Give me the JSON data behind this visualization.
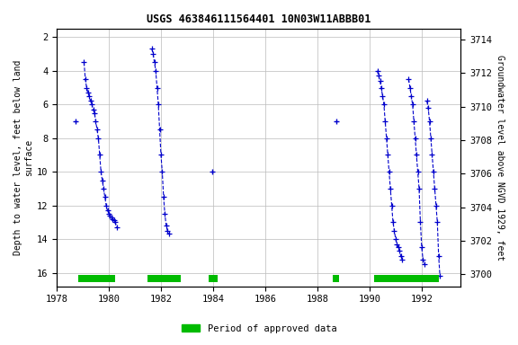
{
  "title": "USGS 463846111564401 10N03W11ABBB01",
  "ylabel_left": "Depth to water level, feet below land\nsurface",
  "ylabel_right": "Groundwater level above NGVD 1929, feet",
  "xlim": [
    1978,
    1993.5
  ],
  "ylim_left": [
    16.8,
    1.5
  ],
  "ylim_right": [
    3699.3,
    3714.65
  ],
  "xticks": [
    1978,
    1980,
    1982,
    1984,
    1986,
    1988,
    1990,
    1992
  ],
  "yticks_left": [
    2,
    4,
    6,
    8,
    10,
    12,
    14,
    16
  ],
  "yticks_right": [
    3700,
    3702,
    3704,
    3706,
    3708,
    3710,
    3712,
    3714
  ],
  "clusters": [
    {
      "x": [
        1978.72
      ],
      "y": [
        7.0
      ]
    },
    {
      "x": [
        1979.05,
        1979.1,
        1979.15,
        1979.2,
        1979.25,
        1979.3,
        1979.35,
        1979.4,
        1979.45,
        1979.5,
        1979.55,
        1979.6,
        1979.65,
        1979.7,
        1979.75,
        1979.8,
        1979.85,
        1979.9,
        1979.95,
        1980.0,
        1980.05,
        1980.1,
        1980.15,
        1980.2,
        1980.25,
        1980.3
      ],
      "y": [
        3.5,
        4.5,
        5.0,
        5.3,
        5.5,
        5.8,
        6.0,
        6.3,
        6.5,
        7.0,
        7.5,
        8.0,
        9.0,
        10.0,
        10.5,
        11.0,
        11.5,
        12.0,
        12.3,
        12.5,
        12.6,
        12.7,
        12.8,
        12.9,
        13.0,
        13.3
      ]
    },
    {
      "x": [
        1981.65,
        1981.7,
        1981.75,
        1981.8,
        1981.85,
        1981.9,
        1981.95,
        1982.0,
        1982.05,
        1982.1,
        1982.15,
        1982.2,
        1982.25,
        1982.3
      ],
      "y": [
        2.7,
        3.0,
        3.5,
        4.0,
        5.0,
        6.0,
        7.5,
        9.0,
        10.0,
        11.5,
        12.5,
        13.2,
        13.5,
        13.7
      ]
    },
    {
      "x": [
        1983.95
      ],
      "y": [
        10.0
      ]
    },
    {
      "x": [
        1988.72
      ],
      "y": [
        7.0
      ]
    },
    {
      "x": [
        1990.3,
        1990.35,
        1990.4,
        1990.45,
        1990.5,
        1990.55,
        1990.6,
        1990.65,
        1990.7,
        1990.75,
        1990.8,
        1990.85,
        1990.9,
        1990.95,
        1991.0,
        1991.05,
        1991.1,
        1991.15,
        1991.2,
        1991.25
      ],
      "y": [
        4.0,
        4.3,
        4.6,
        5.0,
        5.5,
        6.0,
        7.0,
        8.0,
        9.0,
        10.0,
        11.0,
        12.0,
        13.0,
        13.5,
        14.0,
        14.3,
        14.5,
        14.7,
        15.0,
        15.2
      ]
    },
    {
      "x": [
        1991.5,
        1991.55,
        1991.6,
        1991.65,
        1991.7,
        1991.75,
        1991.8,
        1991.85,
        1991.9,
        1991.95,
        1992.0,
        1992.05,
        1992.1
      ],
      "y": [
        4.5,
        5.0,
        5.5,
        6.0,
        7.0,
        8.0,
        9.0,
        10.0,
        11.0,
        13.0,
        14.5,
        15.2,
        15.5
      ]
    },
    {
      "x": [
        1992.2,
        1992.25,
        1992.3,
        1992.35,
        1992.4,
        1992.45,
        1992.5,
        1992.55,
        1992.6,
        1992.65,
        1992.7
      ],
      "y": [
        5.8,
        6.2,
        7.0,
        8.0,
        9.0,
        10.0,
        11.0,
        12.0,
        13.0,
        15.0,
        16.2
      ]
    }
  ],
  "approved_periods": [
    [
      1978.83,
      1980.25
    ],
    [
      1981.5,
      1982.75
    ],
    [
      1983.83,
      1984.17
    ],
    [
      1988.58,
      1988.83
    ],
    [
      1990.17,
      1992.67
    ]
  ],
  "data_color": "#0000cc",
  "approved_color": "#00bb00",
  "bg_color": "#ffffff",
  "grid_color": "#bbbbbb"
}
